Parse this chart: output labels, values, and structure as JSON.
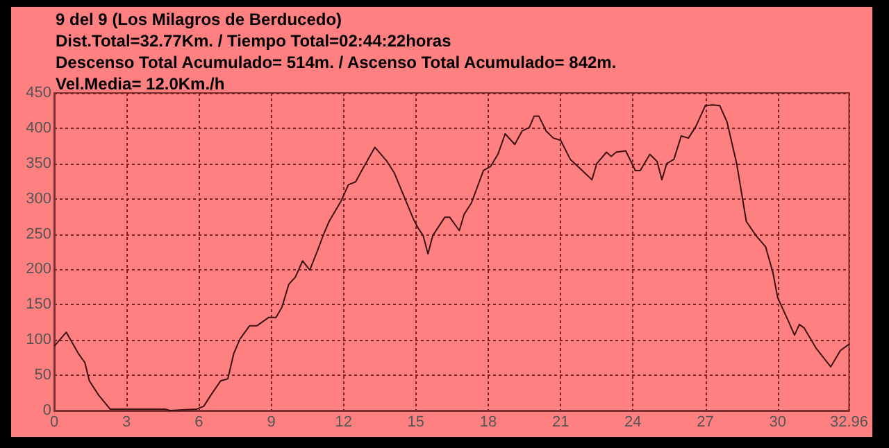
{
  "chart_data": {
    "type": "line",
    "title": "9 del 9 (Los Milagros de Berducedo)",
    "subtitle": "Dist.Total=32.77Km. / Tiempo Total=02:44:22horas\nDescenso Total Acumulado= 514m. / Ascenso Total Acumulado= 842m.\nVel.Media= 12.0Km./h",
    "series": [
      {
        "color": "#3a1010",
        "x": [
          0,
          0.5,
          1.0,
          1.27,
          1.46,
          1.84,
          2.32,
          4.6,
          4.8,
          5.9,
          6.2,
          6.5,
          6.9,
          7.2,
          7.45,
          7.7,
          8.1,
          8.4,
          8.9,
          9.2,
          9.45,
          9.73,
          10.0,
          10.3,
          10.6,
          10.9,
          11.2,
          11.4,
          11.9,
          12.2,
          12.5,
          12.8,
          13.3,
          13.8,
          14.1,
          14.5,
          14.9,
          15.1,
          15.3,
          15.5,
          15.7,
          16.2,
          16.4,
          16.8,
          17.0,
          17.3,
          17.8,
          18.1,
          18.4,
          18.7,
          19.1,
          19.4,
          19.7,
          19.9,
          20.1,
          20.4,
          20.7,
          21.0,
          21.4,
          21.9,
          22.3,
          22.5,
          22.9,
          23.1,
          23.3,
          23.7,
          24.1,
          24.3,
          24.7,
          25.0,
          25.2,
          25.4,
          25.7,
          26.0,
          26.3,
          26.6,
          27.0,
          27.3,
          27.6,
          27.9,
          28.3,
          28.7,
          29.1,
          29.5,
          29.8,
          30.0,
          30.4,
          30.7,
          30.9,
          31.1,
          31.6,
          32.2,
          32.6,
          32.96
        ],
        "values": [
          91,
          111,
          81,
          68,
          42,
          22,
          2,
          2,
          0,
          2,
          6,
          22,
          42,
          45,
          81,
          101,
          120,
          120,
          132,
          132,
          147,
          179,
          189,
          212,
          199,
          225,
          252,
          268,
          297,
          320,
          324,
          343,
          373,
          353,
          337,
          304,
          271,
          258,
          248,
          222,
          248,
          274,
          274,
          255,
          278,
          294,
          340,
          346,
          363,
          392,
          377,
          396,
          401,
          417,
          417,
          396,
          386,
          383,
          356,
          340,
          327,
          350,
          366,
          360,
          366,
          368,
          340,
          340,
          363,
          353,
          327,
          350,
          356,
          389,
          386,
          402,
          432,
          433,
          432,
          409,
          350,
          268,
          248,
          232,
          196,
          160,
          130,
          107,
          122,
          117,
          88,
          62,
          85,
          94
        ]
      }
    ],
    "xlim": [
      0,
      32.96
    ],
    "xticks": [
      0,
      3,
      6,
      9,
      12,
      15,
      18,
      21,
      24,
      27,
      30,
      32.96
    ],
    "ylim": [
      0,
      450
    ],
    "yticks": [
      0,
      50,
      100,
      150,
      200,
      250,
      300,
      350,
      400,
      450
    ],
    "grid": true,
    "marker": "none",
    "line_style": "solid"
  }
}
